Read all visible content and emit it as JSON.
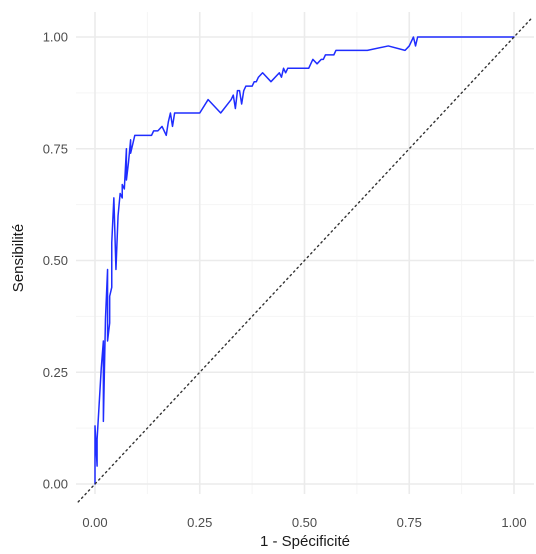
{
  "chart_data": {
    "type": "line",
    "title": "",
    "xlabel": "1 - Spécificité",
    "ylabel": "Sensibilité",
    "xlim": [
      -0.04,
      1.04
    ],
    "ylim": [
      -0.02,
      1.04
    ],
    "x_ticks": [
      0,
      0.25,
      0.5,
      0.75,
      1
    ],
    "x_tick_labels": [
      "0.00",
      "0.25",
      "0.50",
      "0.75",
      "1.00"
    ],
    "y_ticks": [
      0,
      0.25,
      0.5,
      0.75,
      1
    ],
    "y_tick_labels": [
      "0.00",
      "0.25",
      "0.50",
      "0.75",
      "1.00"
    ],
    "grid": true,
    "legend": "none",
    "colors": {
      "roc_curve": "#1f2dff",
      "reference_line": "#333333",
      "grid_major": "#ebebeb",
      "grid_minor": "#f5f5f5"
    },
    "series": [
      {
        "style": "solid",
        "x": [
          0.0,
          0.0,
          0.005,
          0.005,
          0.01,
          0.015,
          0.02,
          0.02,
          0.025,
          0.03,
          0.03,
          0.035,
          0.035,
          0.04,
          0.04,
          0.045,
          0.05,
          0.055,
          0.06,
          0.065,
          0.065,
          0.07,
          0.075,
          0.075,
          0.08,
          0.085,
          0.085,
          0.09,
          0.095,
          0.1,
          0.1,
          0.105,
          0.11,
          0.115,
          0.12,
          0.125,
          0.13,
          0.135,
          0.14,
          0.15,
          0.16,
          0.17,
          0.175,
          0.18,
          0.185,
          0.19,
          0.195,
          0.2,
          0.205,
          0.21,
          0.22,
          0.23,
          0.24,
          0.25,
          0.27,
          0.3,
          0.325,
          0.33,
          0.335,
          0.34,
          0.345,
          0.35,
          0.355,
          0.36,
          0.365,
          0.37,
          0.375,
          0.38,
          0.385,
          0.39,
          0.4,
          0.42,
          0.44,
          0.445,
          0.45,
          0.455,
          0.46,
          0.47,
          0.475,
          0.48,
          0.5,
          0.51,
          0.52,
          0.53,
          0.54,
          0.545,
          0.55,
          0.56,
          0.57,
          0.575,
          0.58,
          0.585,
          0.59,
          0.6,
          0.62,
          0.65,
          0.7,
          0.74,
          0.75,
          0.76,
          0.765,
          0.77,
          0.775,
          0.78,
          0.79,
          0.85,
          0.9,
          0.95,
          1.0
        ],
        "y": [
          0.0,
          0.13,
          0.04,
          0.1,
          0.18,
          0.26,
          0.32,
          0.14,
          0.37,
          0.48,
          0.32,
          0.36,
          0.42,
          0.44,
          0.54,
          0.64,
          0.48,
          0.6,
          0.65,
          0.64,
          0.67,
          0.66,
          0.75,
          0.68,
          0.72,
          0.77,
          0.74,
          0.76,
          0.78,
          0.78,
          0.78,
          0.78,
          0.78,
          0.78,
          0.78,
          0.78,
          0.78,
          0.78,
          0.79,
          0.79,
          0.8,
          0.78,
          0.81,
          0.83,
          0.8,
          0.83,
          0.83,
          0.83,
          0.83,
          0.83,
          0.83,
          0.83,
          0.83,
          0.83,
          0.86,
          0.83,
          0.86,
          0.87,
          0.84,
          0.88,
          0.88,
          0.85,
          0.88,
          0.89,
          0.89,
          0.89,
          0.89,
          0.9,
          0.9,
          0.91,
          0.92,
          0.9,
          0.92,
          0.91,
          0.93,
          0.92,
          0.93,
          0.93,
          0.93,
          0.93,
          0.93,
          0.93,
          0.95,
          0.94,
          0.95,
          0.95,
          0.96,
          0.96,
          0.96,
          0.97,
          0.97,
          0.97,
          0.97,
          0.97,
          0.97,
          0.97,
          0.98,
          0.97,
          0.98,
          1.0,
          0.98,
          1.0,
          1.0,
          1.0,
          1.0,
          1.0,
          1.0,
          1.0,
          1.0
        ]
      },
      {
        "style": "dotted",
        "x": [
          -0.04,
          1.04
        ],
        "y": [
          -0.04,
          1.04
        ]
      }
    ]
  }
}
